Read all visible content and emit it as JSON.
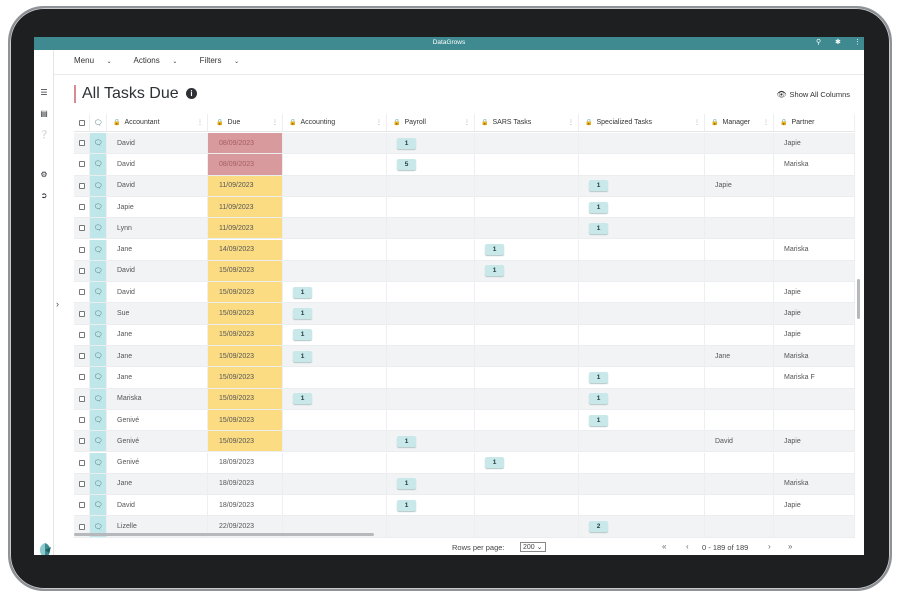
{
  "app": {
    "title": "DataGrows",
    "icons": [
      "search-icon",
      "puzzle-icon",
      "more-vertical-icon"
    ]
  },
  "menu": {
    "items": [
      "Menu",
      "Actions",
      "Filters"
    ]
  },
  "page": {
    "title": "All Tasks Due",
    "show_all_columns": "Show All Columns"
  },
  "columns": [
    "Accountant",
    "Due",
    "Accounting",
    "Payroll",
    "SARS Tasks",
    "Specialized Tasks",
    "Manager",
    "Partner"
  ],
  "colors": {
    "accent": "#3f8a91",
    "overdue": "#d99a9d",
    "due_soon": "#fbdc82",
    "chat_col": "#bfe6e8",
    "badge": "#c8e8ea"
  },
  "rows": [
    {
      "accountant": "David",
      "due": "08/09/2023",
      "status": "overdue",
      "accounting": "",
      "payroll": "1",
      "sars": "",
      "specialized": "",
      "manager": "",
      "partner": "Japie"
    },
    {
      "accountant": "David",
      "due": "08/09/2023",
      "status": "overdue",
      "accounting": "",
      "payroll": "5",
      "sars": "",
      "specialized": "",
      "manager": "",
      "partner": "Mariska"
    },
    {
      "accountant": "David",
      "due": "11/09/2023",
      "status": "soon",
      "accounting": "",
      "payroll": "",
      "sars": "",
      "specialized": "1",
      "manager": "Japie",
      "partner": ""
    },
    {
      "accountant": "Japie",
      "due": "11/09/2023",
      "status": "soon",
      "accounting": "",
      "payroll": "",
      "sars": "",
      "specialized": "1",
      "manager": "",
      "partner": ""
    },
    {
      "accountant": "Lynn",
      "due": "11/09/2023",
      "status": "soon",
      "accounting": "",
      "payroll": "",
      "sars": "",
      "specialized": "1",
      "manager": "",
      "partner": ""
    },
    {
      "accountant": "Jane",
      "due": "14/09/2023",
      "status": "soon",
      "accounting": "",
      "payroll": "",
      "sars": "1",
      "specialized": "",
      "manager": "",
      "partner": "Mariska"
    },
    {
      "accountant": "David",
      "due": "15/09/2023",
      "status": "soon",
      "accounting": "",
      "payroll": "",
      "sars": "1",
      "specialized": "",
      "manager": "",
      "partner": ""
    },
    {
      "accountant": "David",
      "due": "15/09/2023",
      "status": "soon",
      "accounting": "1",
      "payroll": "",
      "sars": "",
      "specialized": "",
      "manager": "",
      "partner": "Japie"
    },
    {
      "accountant": "Sue",
      "due": "15/09/2023",
      "status": "soon",
      "accounting": "1",
      "payroll": "",
      "sars": "",
      "specialized": "",
      "manager": "",
      "partner": "Japie"
    },
    {
      "accountant": "Jane",
      "due": "15/09/2023",
      "status": "soon",
      "accounting": "1",
      "payroll": "",
      "sars": "",
      "specialized": "",
      "manager": "",
      "partner": "Japie"
    },
    {
      "accountant": "Jane",
      "due": "15/09/2023",
      "status": "soon",
      "accounting": "1",
      "payroll": "",
      "sars": "",
      "specialized": "",
      "manager": "Jane",
      "partner": "Mariska"
    },
    {
      "accountant": "Jane",
      "due": "15/09/2023",
      "status": "soon",
      "accounting": "",
      "payroll": "",
      "sars": "",
      "specialized": "1",
      "manager": "",
      "partner": "Mariska F"
    },
    {
      "accountant": "Mariska",
      "due": "15/09/2023",
      "status": "soon",
      "accounting": "1",
      "payroll": "",
      "sars": "",
      "specialized": "1",
      "manager": "",
      "partner": ""
    },
    {
      "accountant": "Genivé",
      "due": "15/09/2023",
      "status": "soon",
      "accounting": "",
      "payroll": "",
      "sars": "",
      "specialized": "1",
      "manager": "",
      "partner": ""
    },
    {
      "accountant": "Genivé",
      "due": "15/09/2023",
      "status": "soon",
      "accounting": "",
      "payroll": "1",
      "sars": "",
      "specialized": "",
      "manager": "David",
      "partner": "Japie"
    },
    {
      "accountant": "Genivé",
      "due": "18/09/2023",
      "status": "normal",
      "accounting": "",
      "payroll": "",
      "sars": "1",
      "specialized": "",
      "manager": "",
      "partner": ""
    },
    {
      "accountant": "Jane",
      "due": "18/09/2023",
      "status": "normal",
      "accounting": "",
      "payroll": "1",
      "sars": "",
      "specialized": "",
      "manager": "",
      "partner": "Mariska"
    },
    {
      "accountant": "David",
      "due": "18/09/2023",
      "status": "normal",
      "accounting": "",
      "payroll": "1",
      "sars": "",
      "specialized": "",
      "manager": "",
      "partner": "Japie"
    },
    {
      "accountant": "Lizelle",
      "due": "22/09/2023",
      "status": "normal",
      "accounting": "",
      "payroll": "",
      "sars": "",
      "specialized": "2",
      "manager": "",
      "partner": ""
    }
  ],
  "footer": {
    "rows_per_page_label": "Rows per page:",
    "rows_per_page": "200",
    "range": "0 - 189 of 189"
  }
}
